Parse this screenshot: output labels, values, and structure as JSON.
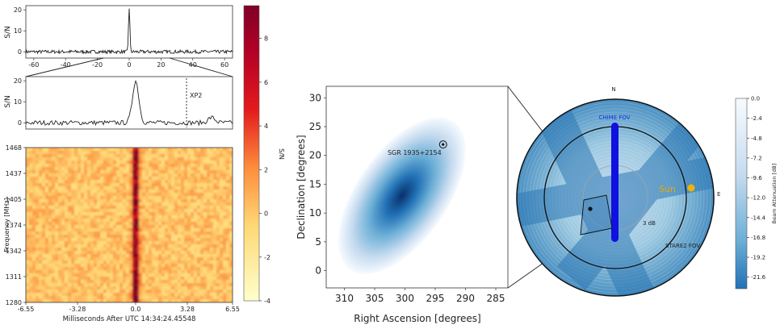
{
  "chart_data": [
    {
      "type": "line",
      "panel": "top-profile",
      "ylabel": "S/N",
      "xlim": [
        -65,
        65
      ],
      "ylim": [
        -3,
        22
      ],
      "xticks": [
        -60,
        -40,
        -20,
        0,
        20,
        40,
        60
      ],
      "yticks": [
        0,
        10,
        20
      ],
      "peak": {
        "x": 0,
        "y": 21
      }
    },
    {
      "type": "line",
      "panel": "zoom-profile",
      "ylabel": "S/N",
      "ylim": [
        -3,
        22
      ],
      "yticks": [
        0,
        10,
        20
      ],
      "annotation": "XP2",
      "peak": {
        "x": 0,
        "y": 20
      }
    },
    {
      "type": "heatmap",
      "panel": "dynamic-spectrum",
      "ylabel": "Frequency [MHz]",
      "xlabel": "Milliseconds After UTC 14:34:24.45548",
      "xticks": [
        "-6.55",
        "-3.28",
        "0.0",
        "3.28",
        "6.55"
      ],
      "yticks": [
        "1468",
        "1437",
        "1405",
        "1374",
        "1342",
        "1311",
        "1280"
      ],
      "colorbar": {
        "label": "S/N",
        "ticks": [
          "8",
          "6",
          "4",
          "2",
          "0",
          "-2",
          "-4"
        ],
        "range": [
          -4,
          9.5
        ]
      }
    },
    {
      "type": "heatmap",
      "panel": "localization",
      "xlabel": "Right Ascension [degrees]",
      "ylabel": "Declination [degrees]",
      "xticks": [
        "310",
        "305",
        "300",
        "295",
        "290",
        "285"
      ],
      "yticks": [
        "0",
        "5",
        "10",
        "15",
        "20",
        "25",
        "30"
      ],
      "xlim": [
        313,
        283
      ],
      "ylim": [
        -3,
        32
      ],
      "source": {
        "label": "SGR 1935+2154",
        "ra": 293.7,
        "dec": 21.9
      },
      "centroid": {
        "ra": 300.5,
        "dec": 13
      }
    },
    {
      "type": "heatmap",
      "panel": "sky-beam",
      "labels": {
        "north": "N",
        "east": "E",
        "chime": "CHIME FOV",
        "sun": "Sun",
        "db": "3 dB",
        "stare": "STARE2 FOV"
      },
      "colorbar": {
        "label": "Beam Attenuation [dB]",
        "ticks": [
          "0.0",
          "-2.4",
          "-4.8",
          "-7.2",
          "-9.6",
          "-12.0",
          "-14.4",
          "-16.8",
          "-19.2",
          "-21.6"
        ],
        "range": [
          -23,
          0
        ]
      }
    }
  ]
}
